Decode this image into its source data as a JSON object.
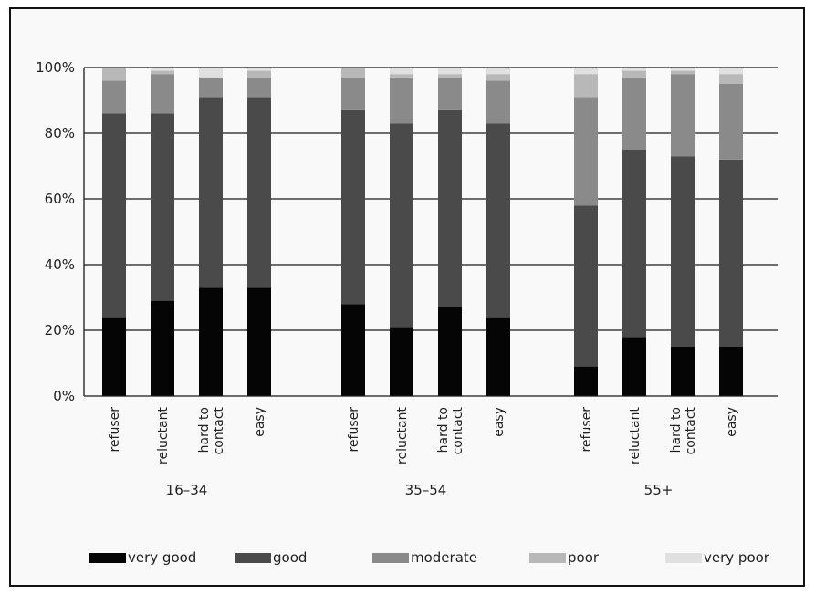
{
  "chart_data": {
    "type": "bar",
    "stacked": true,
    "ylim": [
      0,
      100
    ],
    "yticks": [
      "0%",
      "20%",
      "40%",
      "60%",
      "80%",
      "100%"
    ],
    "grid": true,
    "legend_position": "bottom",
    "groups": [
      {
        "label": "16–34",
        "categories": [
          "refuser",
          "reluctant",
          "hard to contact",
          "easy"
        ]
      },
      {
        "label": "35–54",
        "categories": [
          "refuser",
          "reluctant",
          "hard to contact",
          "easy"
        ]
      },
      {
        "label": "55+",
        "categories": [
          "refuser",
          "reluctant",
          "hard to contact",
          "easy"
        ]
      }
    ],
    "series": [
      {
        "name": "very good",
        "color": "#050505",
        "values": [
          24,
          29,
          33,
          33,
          28,
          21,
          27,
          24,
          9,
          18,
          15,
          15
        ]
      },
      {
        "name": "good",
        "color": "#4a4a4a",
        "values": [
          62,
          57,
          58,
          58,
          59,
          62,
          60,
          59,
          49,
          57,
          58,
          57
        ]
      },
      {
        "name": "moderate",
        "color": "#8a8a8a",
        "values": [
          10,
          12,
          6,
          6,
          10,
          14,
          10,
          13,
          33,
          22,
          25,
          23
        ]
      },
      {
        "name": "poor",
        "color": "#b8b8b8",
        "values": [
          4,
          1,
          0,
          2,
          3,
          1,
          1,
          2,
          7,
          2,
          1,
          3
        ]
      },
      {
        "name": "very poor",
        "color": "#e0e0e0",
        "values": [
          0,
          1,
          3,
          1,
          0,
          2,
          2,
          2,
          2,
          1,
          1,
          2
        ]
      }
    ]
  }
}
